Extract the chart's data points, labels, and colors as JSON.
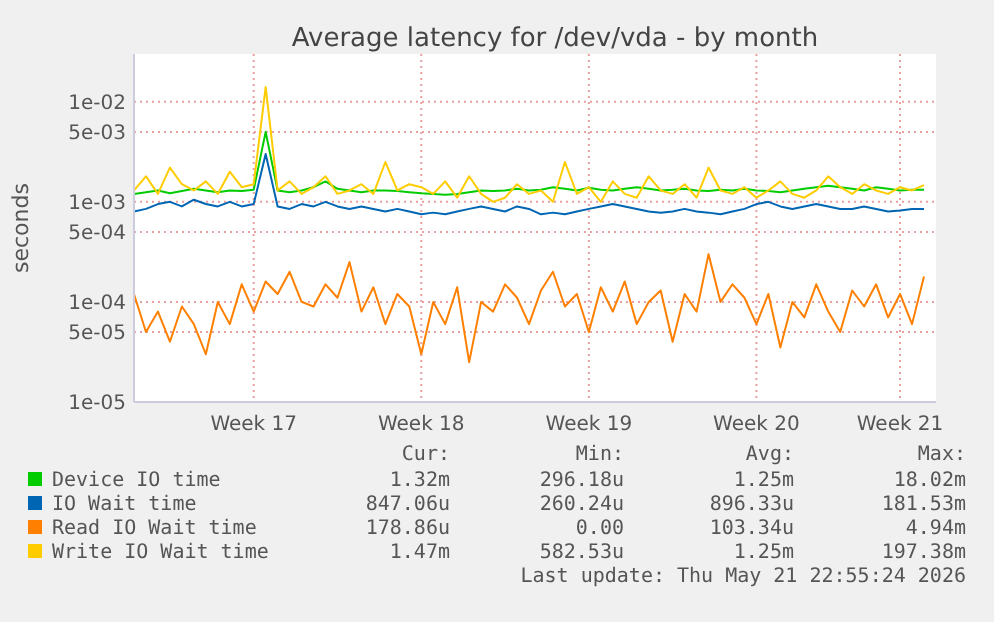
{
  "chart_data": {
    "type": "line",
    "title": "Average latency for /dev/vda - by month",
    "ylabel": "seconds",
    "log": true,
    "grid": true,
    "legend": "bottom",
    "categories": [
      null,
      null,
      null,
      null,
      null,
      null,
      null,
      null,
      null,
      null,
      "Week 17",
      null,
      null,
      null,
      null,
      null,
      null,
      null,
      null,
      null,
      null,
      null,
      null,
      null,
      "Week 18",
      null,
      null,
      null,
      null,
      null,
      null,
      null,
      null,
      null,
      null,
      null,
      null,
      null,
      "Week 19",
      null,
      null,
      null,
      null,
      null,
      null,
      null,
      null,
      null,
      null,
      null,
      null,
      null,
      "Week 20",
      null,
      null,
      null,
      null,
      null,
      null,
      null,
      null,
      null,
      null,
      null,
      "Week 21",
      null,
      null
    ],
    "ylim": [
      1e-05,
      0.03
    ],
    "yticks": [
      {
        "value": 1e-05,
        "label": "1e-05"
      },
      {
        "value": 5e-05,
        "label": "5e-05"
      },
      {
        "value": 0.0001,
        "label": "1e-04"
      },
      {
        "value": 0.0005,
        "label": "5e-04"
      },
      {
        "value": 0.001,
        "label": "1e-03"
      },
      {
        "value": 0.005,
        "label": "5e-03"
      },
      {
        "value": 0.01,
        "label": "1e-02"
      }
    ],
    "series": [
      {
        "name": "Device IO time",
        "color": "#00cc00",
        "values": [
          0.0012,
          0.00125,
          0.0013,
          0.00122,
          0.00128,
          0.00135,
          0.0013,
          0.00125,
          0.0013,
          0.00128,
          0.00132,
          0.005,
          0.0013,
          0.00125,
          0.0013,
          0.0014,
          0.0016,
          0.00135,
          0.0013,
          0.00125,
          0.0013,
          0.0013,
          0.00128,
          0.00125,
          0.00122,
          0.0012,
          0.00118,
          0.0012,
          0.00125,
          0.0013,
          0.00128,
          0.0013,
          0.00135,
          0.0013,
          0.00132,
          0.0014,
          0.00135,
          0.0013,
          0.00138,
          0.00132,
          0.0013,
          0.00135,
          0.0014,
          0.00135,
          0.0013,
          0.00132,
          0.00135,
          0.0013,
          0.00128,
          0.00132,
          0.0013,
          0.00135,
          0.0013,
          0.00128,
          0.00125,
          0.0013,
          0.00135,
          0.0014,
          0.00145,
          0.0014,
          0.00135,
          0.0013,
          0.0014,
          0.00135,
          0.0013,
          0.00132,
          0.00132
        ]
      },
      {
        "name": "IO Wait time",
        "color": "#0066b3",
        "values": [
          0.0008,
          0.00085,
          0.00095,
          0.001,
          0.0009,
          0.00105,
          0.00095,
          0.0009,
          0.001,
          0.0009,
          0.00095,
          0.003,
          0.0009,
          0.00085,
          0.00095,
          0.0009,
          0.001,
          0.0009,
          0.00085,
          0.0009,
          0.00085,
          0.0008,
          0.00085,
          0.0008,
          0.00075,
          0.00078,
          0.00075,
          0.0008,
          0.00085,
          0.0009,
          0.00085,
          0.0008,
          0.0009,
          0.00085,
          0.00075,
          0.00078,
          0.00075,
          0.0008,
          0.00085,
          0.0009,
          0.00095,
          0.0009,
          0.00085,
          0.0008,
          0.00078,
          0.0008,
          0.00085,
          0.0008,
          0.00078,
          0.00075,
          0.0008,
          0.00085,
          0.00095,
          0.001,
          0.0009,
          0.00085,
          0.0009,
          0.00095,
          0.0009,
          0.00085,
          0.00085,
          0.0009,
          0.00085,
          0.0008,
          0.00082,
          0.00085,
          0.00085
        ]
      },
      {
        "name": "Read IO Wait time",
        "color": "#ff8000",
        "values": [
          0.00012,
          5e-05,
          8e-05,
          4e-05,
          9e-05,
          6e-05,
          3e-05,
          0.0001,
          6e-05,
          0.00015,
          8e-05,
          0.00016,
          0.00012,
          0.0002,
          0.0001,
          9e-05,
          0.00015,
          0.00011,
          0.00025,
          8e-05,
          0.00014,
          6e-05,
          0.00012,
          9e-05,
          3e-05,
          0.0001,
          6e-05,
          0.00014,
          2.5e-05,
          0.0001,
          8e-05,
          0.00015,
          0.00011,
          6e-05,
          0.00013,
          0.0002,
          9e-05,
          0.00012,
          5e-05,
          0.00014,
          8e-05,
          0.00016,
          6e-05,
          0.0001,
          0.00013,
          4e-05,
          0.00012,
          8e-05,
          0.0003,
          0.0001,
          0.00015,
          0.00011,
          6e-05,
          0.00012,
          3.5e-05,
          0.0001,
          7e-05,
          0.00015,
          8e-05,
          5e-05,
          0.00013,
          9e-05,
          0.00015,
          7e-05,
          0.00012,
          6e-05,
          0.000179
        ]
      },
      {
        "name": "Write IO Wait time",
        "color": "#ffcc00",
        "values": [
          0.0013,
          0.0018,
          0.0012,
          0.0022,
          0.0015,
          0.0013,
          0.0016,
          0.0012,
          0.002,
          0.0014,
          0.0015,
          0.014,
          0.0013,
          0.0016,
          0.0012,
          0.0014,
          0.0018,
          0.0012,
          0.0013,
          0.0015,
          0.0012,
          0.0025,
          0.0013,
          0.0015,
          0.0014,
          0.0012,
          0.0016,
          0.0011,
          0.0018,
          0.0012,
          0.001,
          0.0011,
          0.0015,
          0.0012,
          0.0013,
          0.001,
          0.0025,
          0.0012,
          0.0014,
          0.001,
          0.0016,
          0.0012,
          0.0011,
          0.0018,
          0.0013,
          0.0012,
          0.0015,
          0.0011,
          0.0022,
          0.0013,
          0.0012,
          0.0014,
          0.0011,
          0.0013,
          0.0016,
          0.0012,
          0.0011,
          0.0013,
          0.0018,
          0.0014,
          0.0012,
          0.0015,
          0.0013,
          0.0012,
          0.0014,
          0.0013,
          0.00147
        ]
      }
    ],
    "annotations": [
      "Cur:",
      "Min:",
      "Avg:",
      "Max:",
      "1.32m",
      "296.18u",
      "1.25m",
      "18.02m",
      "847.06u",
      "260.24u",
      "896.33u",
      "181.53m",
      "178.86u",
      "0.00",
      "103.34u",
      "4.94m",
      "1.47m",
      "582.53u",
      "1.25m",
      "197.38m",
      "Last update: Thu May 21 22:55:24 2026"
    ]
  }
}
